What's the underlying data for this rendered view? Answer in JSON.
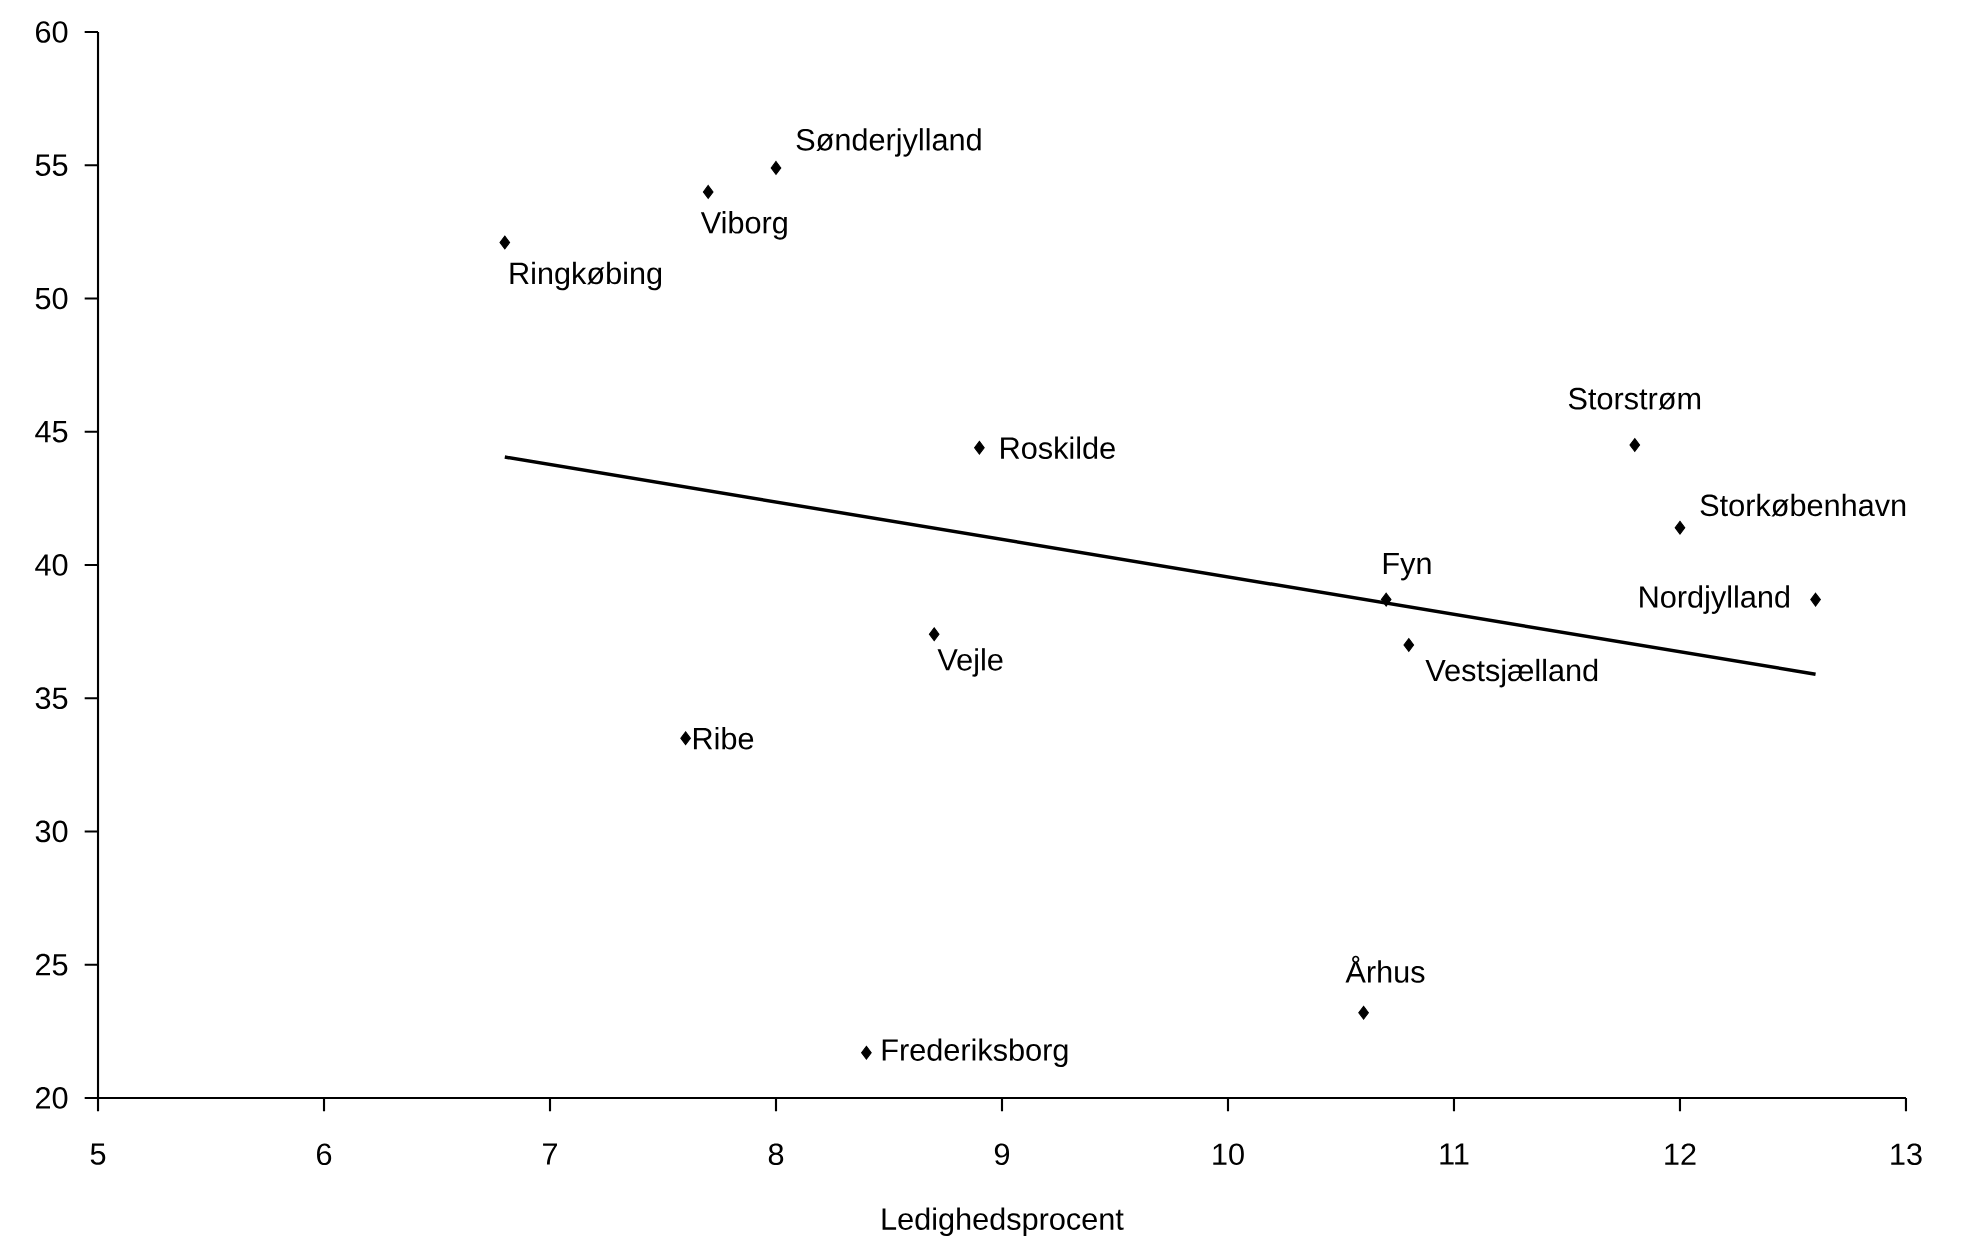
{
  "chart_data": {
    "type": "scatter",
    "xlabel": "Ledighedsprocent",
    "xlim": [
      5,
      13
    ],
    "xticks": [
      5,
      6,
      7,
      8,
      9,
      10,
      11,
      12,
      13
    ],
    "ylim": [
      20,
      60
    ],
    "yticks": [
      20,
      25,
      30,
      35,
      40,
      45,
      50,
      55,
      60
    ],
    "grid": false,
    "marker": "diamond",
    "series": [
      {
        "color": "#000000",
        "x": [
          6.8,
          7.7,
          8.0,
          8.9,
          11.8,
          12.0,
          10.7,
          10.8,
          12.6,
          8.7,
          7.6,
          8.4,
          10.6
        ],
        "values": [
          52.1,
          54.0,
          54.9,
          44.4,
          44.5,
          41.4,
          38.7,
          37.0,
          38.7,
          37.4,
          33.5,
          21.7,
          23.2
        ]
      },
      {
        "type": "line",
        "color": "#000000",
        "marker": "none",
        "x": [
          6.8,
          12.6
        ],
        "values": [
          44.05,
          35.9
        ]
      }
    ],
    "annotations": [
      {
        "text": "Ringkøbing",
        "x": 6.8,
        "y": 52.1
      },
      {
        "text": "Viborg",
        "x": 7.7,
        "y": 54.0
      },
      {
        "text": "Sønderjylland",
        "x": 8.0,
        "y": 54.9
      },
      {
        "text": "Roskilde",
        "x": 8.9,
        "y": 44.4
      },
      {
        "text": "Storstrøm",
        "x": 11.8,
        "y": 44.5
      },
      {
        "text": "Storkøbenhavn",
        "x": 12.0,
        "y": 41.4
      },
      {
        "text": "Fyn",
        "x": 10.7,
        "y": 38.7
      },
      {
        "text": "Vestsjælland",
        "x": 10.8,
        "y": 37.0
      },
      {
        "text": "Nordjylland",
        "x": 12.6,
        "y": 38.7
      },
      {
        "text": "Vejle",
        "x": 8.7,
        "y": 37.4
      },
      {
        "text": "Ribe",
        "x": 7.6,
        "y": 33.5
      },
      {
        "text": "Frederiksborg",
        "x": 8.4,
        "y": 21.7
      },
      {
        "text": "Århus",
        "x": 10.6,
        "y": 23.2
      }
    ]
  }
}
